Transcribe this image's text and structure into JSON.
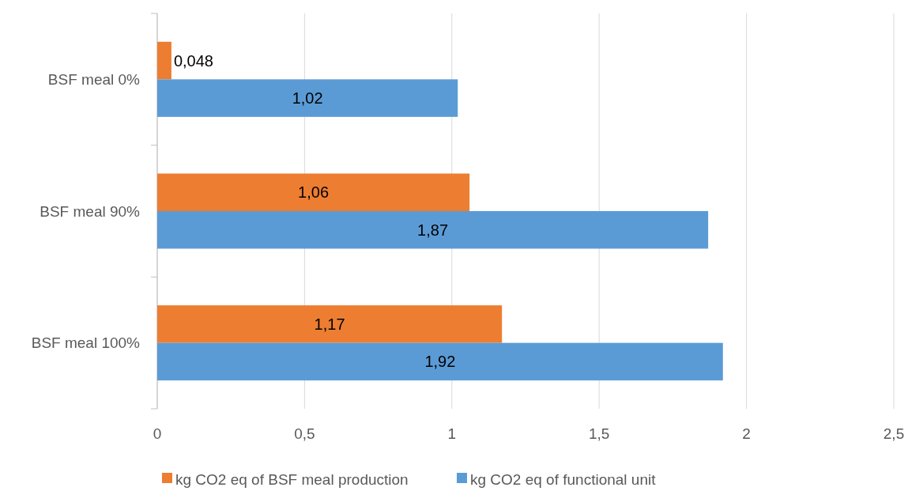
{
  "chart_data": {
    "type": "bar",
    "orientation": "horizontal",
    "categories": [
      "BSF meal 0%",
      "BSF meal 90%",
      "BSF meal 100%"
    ],
    "series": [
      {
        "name": "kg CO2 eq of BSF meal production",
        "color": "#ed7d31",
        "values": [
          0.048,
          1.06,
          1.17
        ],
        "value_labels": [
          "0,048",
          "1,06",
          "1,17"
        ]
      },
      {
        "name": "kg CO2 eq of functional unit",
        "color": "#5b9bd5",
        "values": [
          1.02,
          1.87,
          1.92
        ],
        "value_labels": [
          "1,02",
          "1,87",
          "1,92"
        ]
      }
    ],
    "xlim": [
      0,
      2.5
    ],
    "xticks": [
      {
        "value": 0,
        "label": "0"
      },
      {
        "value": 0.5,
        "label": "0,5"
      },
      {
        "value": 1,
        "label": "1"
      },
      {
        "value": 1.5,
        "label": "1,5"
      },
      {
        "value": 2,
        "label": "2"
      },
      {
        "value": 2.5,
        "label": "2,5"
      }
    ],
    "grid": "x",
    "legend": "bottom"
  }
}
